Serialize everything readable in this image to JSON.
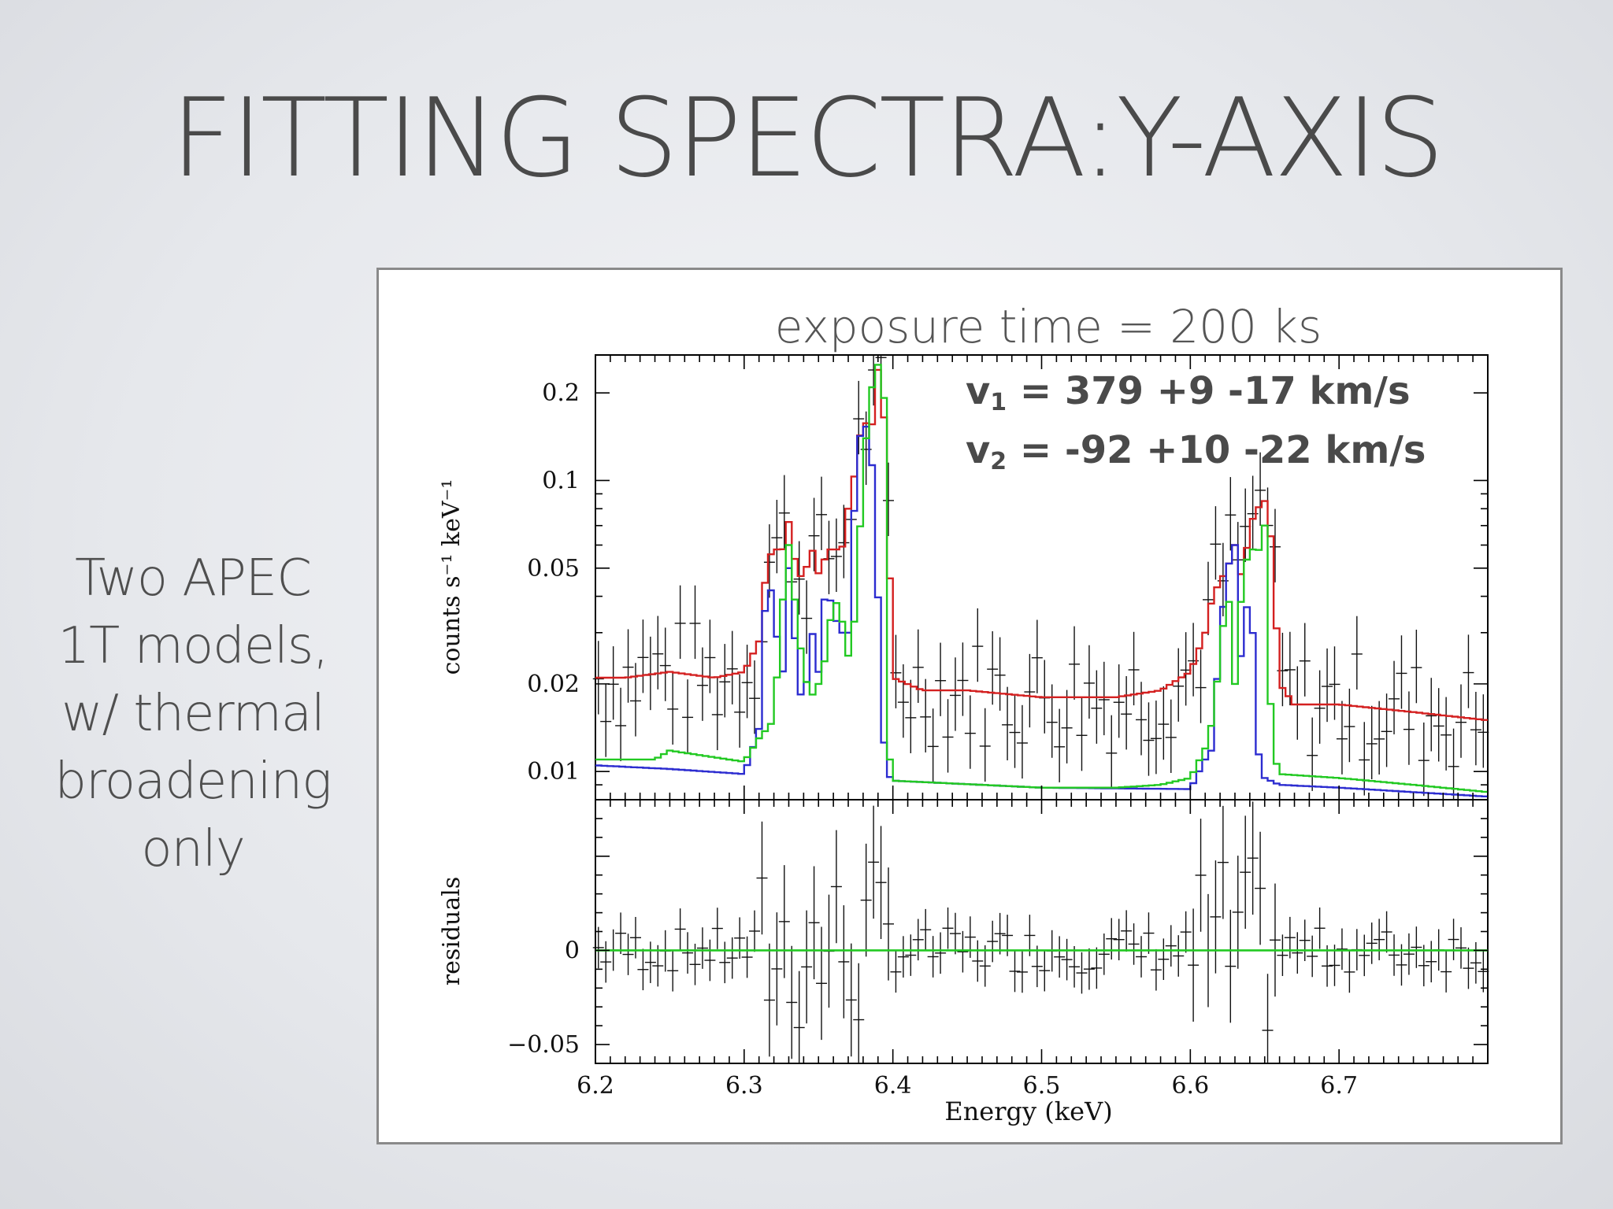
{
  "slide": {
    "title": "FITTING SPECTRA:Y-AXIS",
    "side_note": [
      "Two APEC",
      "1T models,",
      "w/ thermal",
      "broadening",
      "only"
    ]
  },
  "chart_data": {
    "type": "line",
    "title": "exposure time = 200 ks",
    "xlabel": "Energy (keV)",
    "xlim": [
      6.2,
      6.8
    ],
    "x_ticks": [
      "6.2",
      "6.3",
      "6.4",
      "6.5",
      "6.6",
      "6.7"
    ],
    "x_tick_values": [
      6.2,
      6.3,
      6.4,
      6.5,
      6.6,
      6.7
    ],
    "top_panel": {
      "ylabel": "counts s⁻¹ keV⁻¹",
      "y_scale": "log",
      "ylim": [
        0.008,
        0.27
      ],
      "y_ticks": [
        "0.2",
        "0.1",
        "0.05",
        "0.02",
        "0.01"
      ],
      "y_tick_values": [
        0.2,
        0.1,
        0.05,
        0.02,
        0.01
      ],
      "annotations": [
        {
          "var": "v",
          "sub": "1",
          "text": " = 379 +9 -17 km/s"
        },
        {
          "var": "v",
          "sub": "2",
          "text": " = -92 +10 -22 km/s"
        }
      ],
      "series": [
        {
          "color": "#d42020",
          "x": [
            6.2,
            6.22,
            6.25,
            6.28,
            6.3,
            6.31,
            6.315,
            6.32,
            6.325,
            6.33,
            6.335,
            6.34,
            6.345,
            6.35,
            6.355,
            6.36,
            6.365,
            6.37,
            6.375,
            6.38,
            6.385,
            6.39,
            6.395,
            6.4,
            6.42,
            6.45,
            6.5,
            6.55,
            6.58,
            6.6,
            6.61,
            6.615,
            6.62,
            6.625,
            6.63,
            6.635,
            6.64,
            6.645,
            6.65,
            6.655,
            6.66,
            6.67,
            6.7,
            6.75,
            6.8
          ],
          "y": [
            0.021,
            0.021,
            0.022,
            0.021,
            0.022,
            0.028,
            0.05,
            0.06,
            0.055,
            0.072,
            0.05,
            0.045,
            0.06,
            0.048,
            0.055,
            0.06,
            0.055,
            0.08,
            0.11,
            0.17,
            0.14,
            0.24,
            0.15,
            0.021,
            0.019,
            0.019,
            0.018,
            0.018,
            0.019,
            0.022,
            0.03,
            0.04,
            0.045,
            0.05,
            0.06,
            0.045,
            0.07,
            0.08,
            0.085,
            0.06,
            0.02,
            0.017,
            0.017,
            0.016,
            0.015
          ]
        },
        {
          "color": "#2c2cd0",
          "x": [
            6.2,
            6.25,
            6.3,
            6.31,
            6.315,
            6.32,
            6.325,
            6.33,
            6.335,
            6.34,
            6.345,
            6.35,
            6.355,
            6.36,
            6.365,
            6.37,
            6.375,
            6.38,
            6.385,
            6.388,
            6.391,
            6.395,
            6.4,
            6.5,
            6.6,
            6.61,
            6.615,
            6.62,
            6.625,
            6.63,
            6.635,
            6.64,
            6.645,
            6.65,
            6.66,
            6.7,
            6.8
          ],
          "y": [
            0.0105,
            0.0102,
            0.0098,
            0.014,
            0.045,
            0.04,
            0.018,
            0.05,
            0.025,
            0.015,
            0.032,
            0.022,
            0.045,
            0.035,
            0.03,
            0.03,
            0.1,
            0.18,
            0.12,
            0.1,
            0.025,
            0.01,
            0.0093,
            0.0088,
            0.0087,
            0.011,
            0.012,
            0.03,
            0.05,
            0.06,
            0.02,
            0.055,
            0.012,
            0.0095,
            0.009,
            0.0088,
            0.0082
          ]
        },
        {
          "color": "#22c922",
          "x": [
            6.2,
            6.24,
            6.25,
            6.3,
            6.31,
            6.32,
            6.325,
            6.33,
            6.335,
            6.34,
            6.345,
            6.35,
            6.355,
            6.36,
            6.365,
            6.37,
            6.375,
            6.38,
            6.385,
            6.39,
            6.395,
            6.398,
            6.4,
            6.5,
            6.55,
            6.58,
            6.6,
            6.61,
            6.615,
            6.62,
            6.625,
            6.63,
            6.635,
            6.64,
            6.645,
            6.65,
            6.655,
            6.66,
            6.7,
            6.75,
            6.8
          ],
          "y": [
            0.011,
            0.011,
            0.0118,
            0.0108,
            0.013,
            0.015,
            0.035,
            0.06,
            0.035,
            0.022,
            0.018,
            0.02,
            0.025,
            0.04,
            0.035,
            0.025,
            0.035,
            0.11,
            0.2,
            0.25,
            0.18,
            0.011,
            0.0093,
            0.0088,
            0.0088,
            0.009,
            0.0095,
            0.012,
            0.015,
            0.025,
            0.045,
            0.02,
            0.045,
            0.06,
            0.055,
            0.07,
            0.012,
            0.0098,
            0.0095,
            0.009,
            0.0085
          ]
        }
      ]
    },
    "bottom_panel": {
      "ylabel": "residuals",
      "ylim": [
        -0.06,
        0.08
      ],
      "y_ticks": [
        "0",
        "−0.05"
      ],
      "y_tick_values": [
        0,
        -0.05
      ],
      "series": [
        {
          "color": "#22c922",
          "x": [
            6.2,
            6.8
          ],
          "y": [
            0,
            0
          ]
        }
      ]
    }
  }
}
